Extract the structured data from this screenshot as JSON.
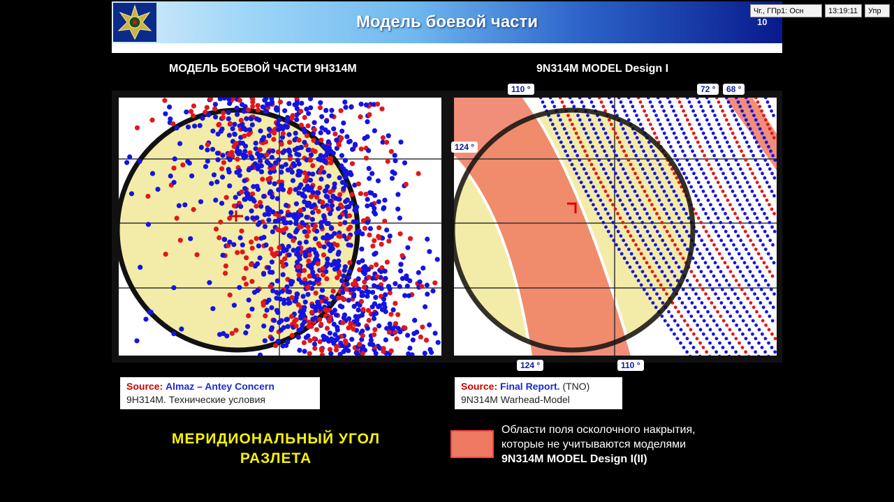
{
  "header": {
    "title": "Модель боевой части",
    "slide_number": "10",
    "status_fields": [
      "Чг., ГПр1: Осн",
      "13:19:11",
      "Упр"
    ]
  },
  "panels": {
    "left": {
      "heading": "МОДЕЛЬ БОЕВОЙ ЧАСТИ 9Н314М",
      "source_key": "Source:",
      "source_value": "Almaz – Antey Concern",
      "source_note": "9Н314М. Технические условия"
    },
    "right": {
      "heading": "9N314M MODEL Design I",
      "source_key": "Source:",
      "source_value": "Final Report.",
      "source_tag": "(TNO)",
      "source_note": "9N314M Warhead-Model",
      "angle_labels": {
        "top_left": "110 °",
        "top_mid": "72 °",
        "top_right": "68 °",
        "left": "124 °",
        "bottom_left": "124 °",
        "bottom_right": "110 °"
      }
    }
  },
  "footer": {
    "meridional_line1": "МЕРИДИОНАЛЬНЫЙ  УГОЛ",
    "meridional_line2": "РАЗЛЕТА",
    "legend_line1": "Области поля осколочного накрытия,",
    "legend_line2": "которые не учитываются моделями",
    "legend_line3": "9N314M MODEL Design I(II)"
  },
  "colors": {
    "target_fill": "#f3eba8",
    "fragment_blue": "#1414e0",
    "fragment_red": "#e01818",
    "excluded_zone": "#ef7a62",
    "accent_yellow": "#f7f200"
  }
}
